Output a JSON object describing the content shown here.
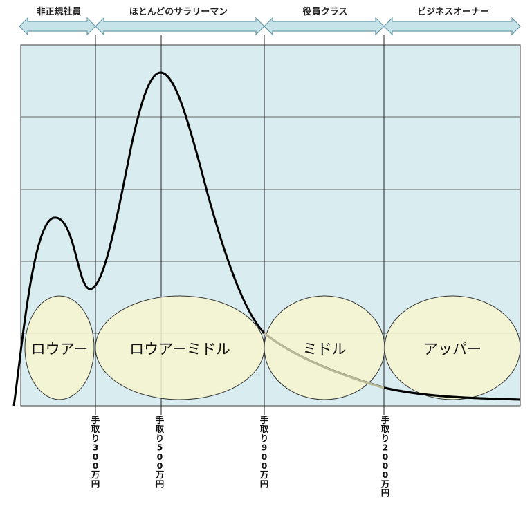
{
  "bands": [
    {
      "label": "非正規社員"
    },
    {
      "label": "ほとんどのサラリーマン"
    },
    {
      "label": "役員クラス"
    },
    {
      "label": "ビジネスオーナー"
    }
  ],
  "classes": [
    {
      "label": "ロウアー"
    },
    {
      "label": "ロウアーミドル"
    },
    {
      "label": "ミドル"
    },
    {
      "label": "アッパー"
    }
  ],
  "income_markers": [
    {
      "label": "手取り300万円"
    },
    {
      "label": "手取り500万円"
    },
    {
      "label": "手取り900万円"
    },
    {
      "label": "手取り2000万円"
    }
  ],
  "colors": {
    "plot_bg": "#d9ecf0",
    "grid": "#3a3a3a",
    "arrow_fill": "#c5e3e9",
    "arrow_stroke": "#6a9aa6",
    "ellipse_fill": "#f6f6cf",
    "ellipse_stroke": "#333333",
    "curve": "#000000"
  }
}
